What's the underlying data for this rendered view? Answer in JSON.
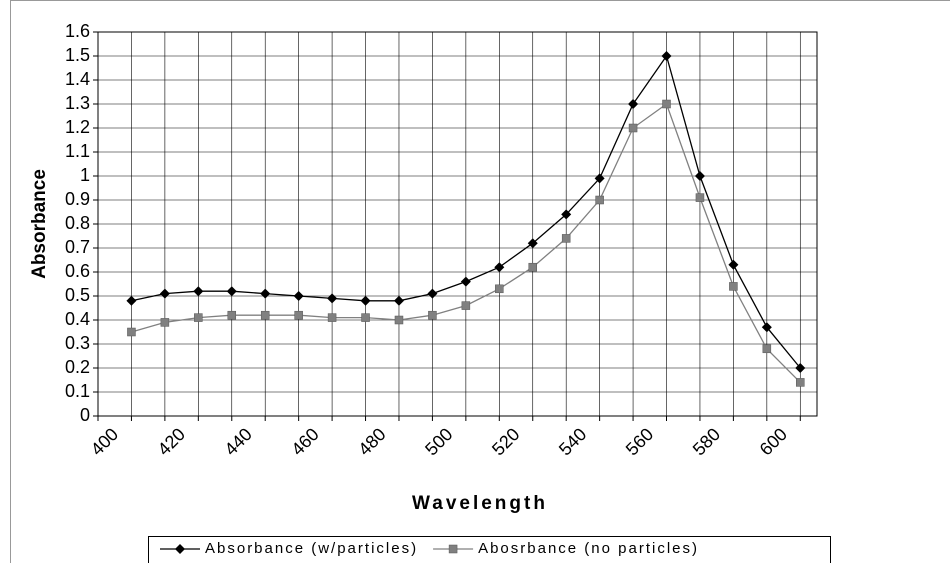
{
  "chart_data": {
    "type": "line",
    "xlabel": "Wavelength",
    "ylabel": "Absorbance",
    "x": [
      410,
      420,
      430,
      440,
      450,
      460,
      470,
      480,
      490,
      500,
      510,
      520,
      530,
      540,
      550,
      560,
      570,
      580,
      590,
      600,
      610
    ],
    "series": [
      {
        "name": "Absorbance (w/particles)",
        "color": "#000000",
        "marker": "diamond",
        "values": [
          0.48,
          0.51,
          0.52,
          0.52,
          0.51,
          0.5,
          0.49,
          0.48,
          0.48,
          0.51,
          0.56,
          0.62,
          0.72,
          0.84,
          0.99,
          1.3,
          1.5,
          1.0,
          0.63,
          0.37,
          0.2
        ]
      },
      {
        "name": "Abosrbance (no particles)",
        "color": "#808080",
        "marker": "square",
        "values": [
          0.35,
          0.39,
          0.41,
          0.42,
          0.42,
          0.42,
          0.41,
          0.41,
          0.4,
          0.42,
          0.46,
          0.53,
          0.62,
          0.74,
          0.9,
          1.2,
          1.3,
          0.91,
          0.54,
          0.28,
          0.14
        ]
      }
    ],
    "xlim": [
      400,
      615
    ],
    "xticks": [
      400,
      420,
      440,
      460,
      480,
      500,
      520,
      540,
      560,
      580,
      600
    ],
    "ylim": [
      0,
      1.6
    ],
    "yticks": [
      0,
      0.1,
      0.2,
      0.3,
      0.4,
      0.5,
      0.6,
      0.7,
      0.8,
      0.9,
      1,
      1.1,
      1.2,
      1.3,
      1.4,
      1.5,
      1.6
    ],
    "grid": true,
    "legend": "bottom"
  }
}
